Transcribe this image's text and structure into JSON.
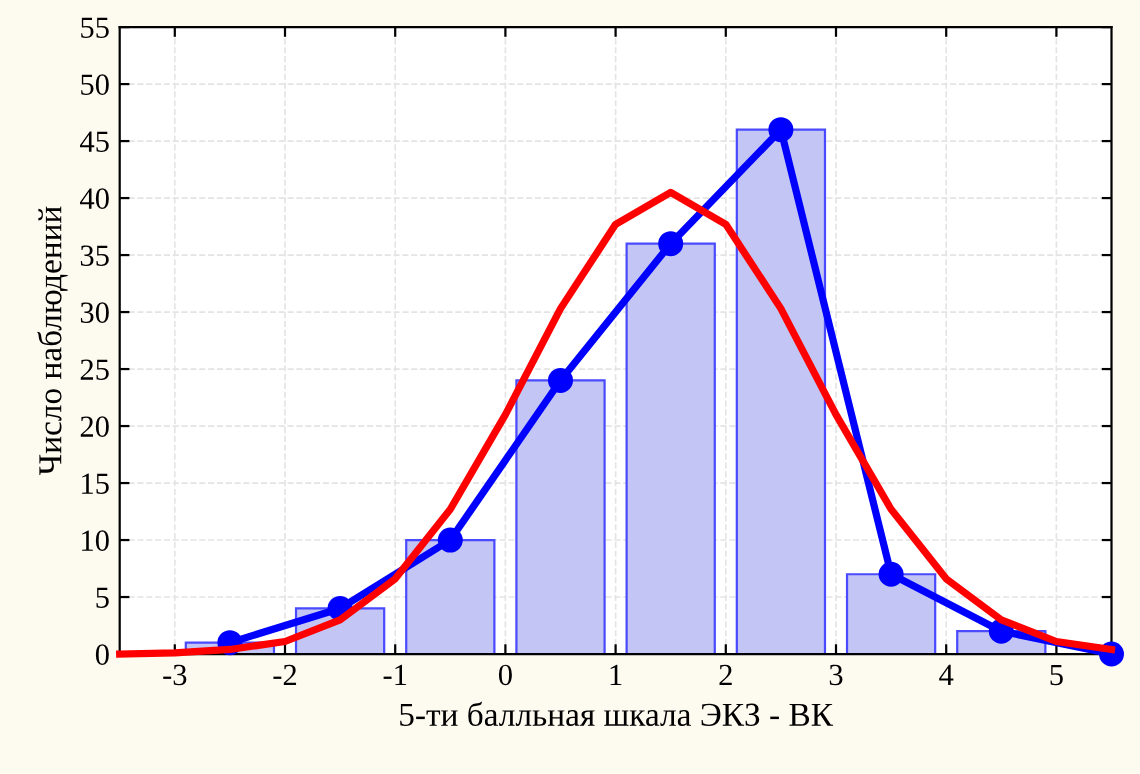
{
  "chart_data": {
    "type": "histogram",
    "xlabel": "5-ти балльная шкала ЭКЗ - ВК",
    "ylabel": "Число наблюдений",
    "bins": [
      -3,
      -2,
      -1,
      0,
      1,
      2,
      3,
      4,
      5
    ],
    "values": [
      1,
      4,
      10,
      24,
      36,
      46,
      7,
      2
    ],
    "color": "#c3c6f5",
    "series": [
      {
        "type": "line",
        "color": "#0000ff",
        "marker": "circle",
        "x": [
          -2.5,
          -1.5,
          -0.5,
          0.5,
          1.5,
          2.5,
          3.5,
          4.5,
          5.5
        ],
        "values": [
          1,
          4,
          10,
          24,
          36,
          46,
          7,
          2,
          0
        ]
      },
      {
        "type": "line",
        "color": "#ff0000",
        "marker": "none",
        "x": [
          -3.5,
          -3,
          -2.5,
          -2,
          -1.5,
          -1,
          -0.5,
          0,
          0.5,
          1,
          1.5,
          2,
          2.5,
          3,
          3.5,
          4,
          4.5,
          5,
          5.5
        ],
        "values": [
          0,
          0.1,
          0.4,
          1.1,
          3,
          6.6,
          12.7,
          21,
          30.3,
          37.7,
          40.5,
          37.7,
          30.3,
          21,
          12.7,
          6.6,
          3,
          1.1,
          0.4
        ]
      }
    ],
    "xlim": [
      -3.5,
      5.5
    ],
    "ylim": [
      0,
      55
    ],
    "xticks": [
      -3,
      -2,
      -1,
      0,
      1,
      2,
      3,
      4,
      5
    ],
    "yticks": [
      0,
      5,
      10,
      15,
      20,
      25,
      30,
      35,
      40,
      45,
      50,
      55
    ],
    "grid": true
  }
}
